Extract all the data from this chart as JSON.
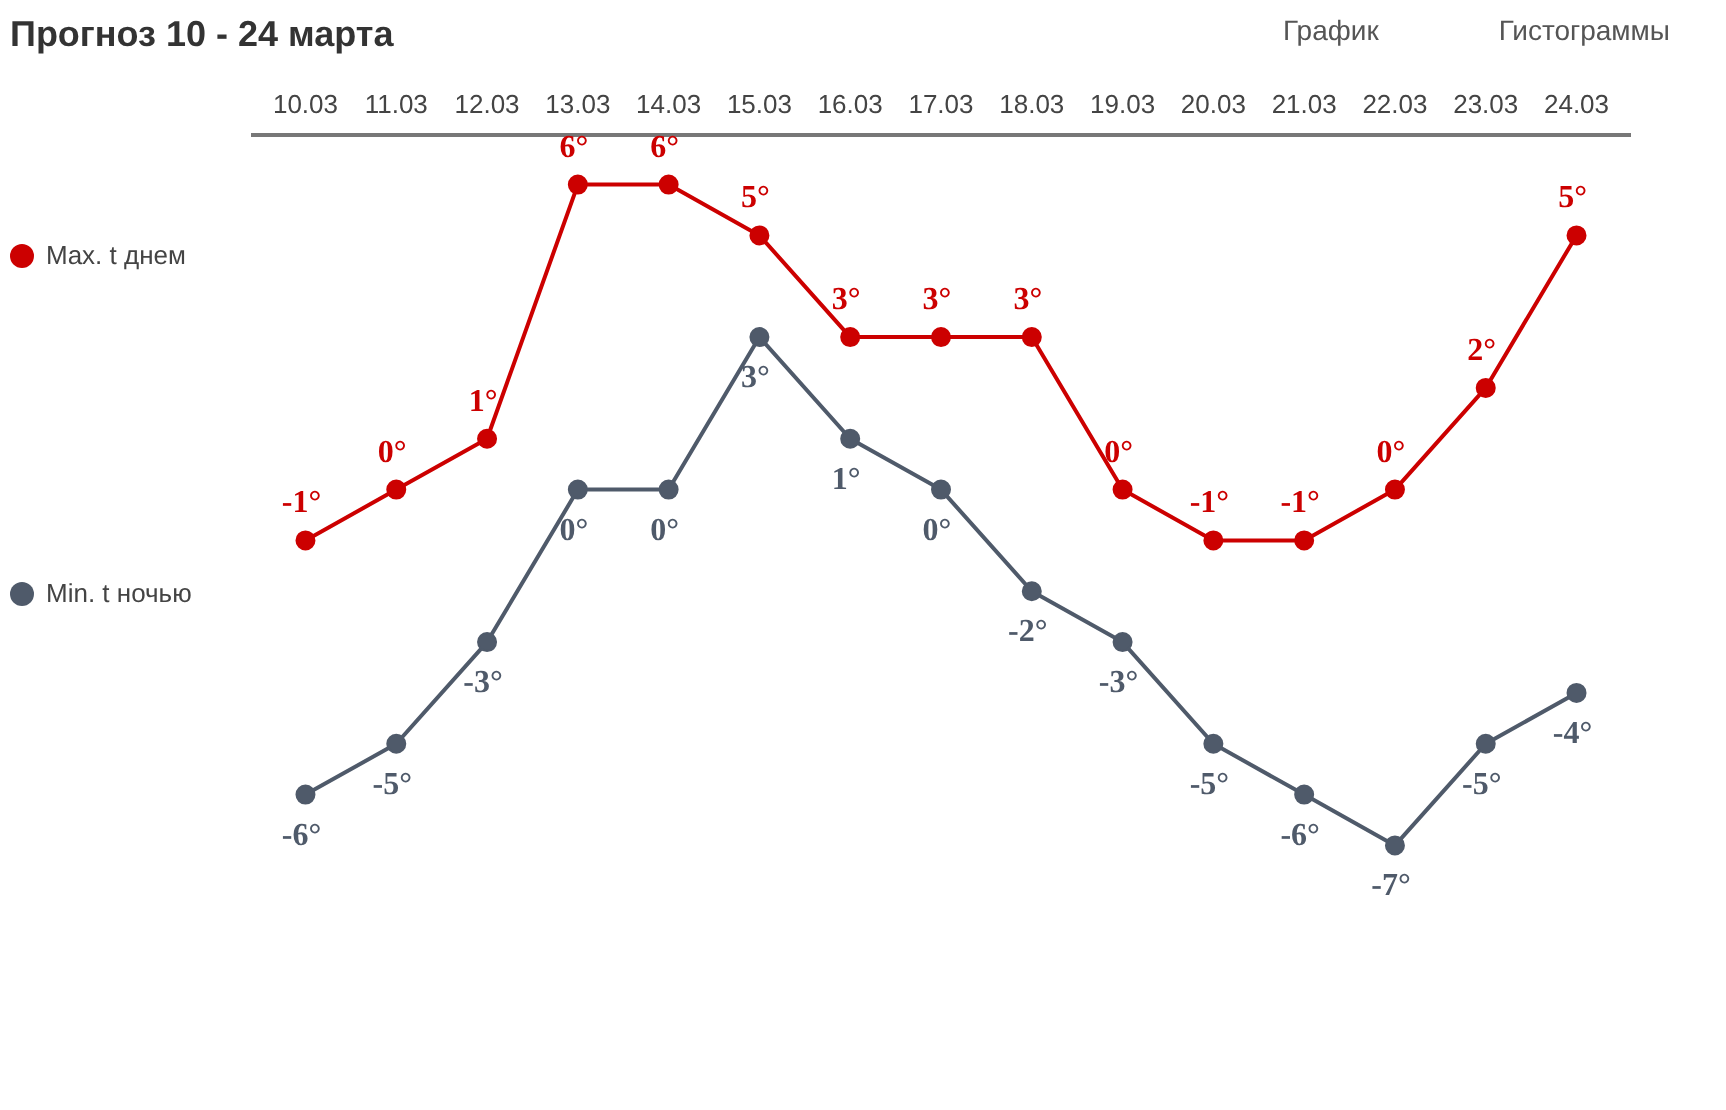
{
  "chart_data": {
    "type": "line",
    "title": "Прогноз 10 - 24 марта",
    "annotations": [
      "График",
      "Гистограммы"
    ],
    "categories": [
      "10.03",
      "11.03",
      "12.03",
      "13.03",
      "14.03",
      "15.03",
      "16.03",
      "17.03",
      "18.03",
      "19.03",
      "20.03",
      "21.03",
      "22.03",
      "23.03",
      "24.03"
    ],
    "marker": "circle",
    "legend": "left",
    "grid": false,
    "tick_labels": "x",
    "series": [
      {
        "name": "Max. t днем",
        "color": "#cc0000",
        "values": [
          -1,
          0,
          1,
          6,
          6,
          5,
          3,
          3,
          3,
          0,
          -1,
          -1,
          0,
          2,
          5
        ],
        "value_labels": [
          "-1°",
          "0°",
          "1°",
          "6°",
          "6°",
          "5°",
          "3°",
          "3°",
          "3°",
          "0°",
          "-1°",
          "-1°",
          "0°",
          "2°",
          "5°"
        ]
      },
      {
        "name": "Min. t ночью",
        "color": "#4f5a6a",
        "values": [
          -6,
          -5,
          -3,
          0,
          0,
          3,
          1,
          0,
          -2,
          -3,
          -5,
          -6,
          -7,
          -5,
          -4
        ],
        "value_labels": [
          "-6°",
          "-5°",
          "-3°",
          "0°",
          "0°",
          "3°",
          "1°",
          "0°",
          "-2°",
          "-3°",
          "-5°",
          "-6°",
          "-7°",
          "-5°",
          "-4°"
        ]
      }
    ]
  }
}
